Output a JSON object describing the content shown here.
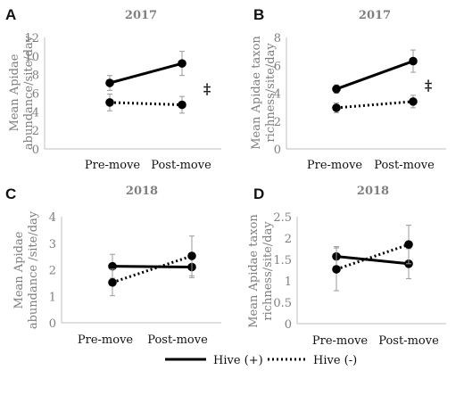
{
  "legend": {
    "hive_plus": "Hive (+)",
    "hive_minus": "Hive (-)"
  },
  "chart_data": [
    {
      "type": "line",
      "panel_letter": "A",
      "title": "2017",
      "ylabel_lines": [
        "Mean Apidae",
        "abundance/site/day"
      ],
      "categories": [
        "Pre-move",
        "Post-move"
      ],
      "ylim": [
        0,
        12
      ],
      "yticks": [
        "0",
        "2",
        "4",
        "6",
        "8",
        "10",
        "12"
      ],
      "significance": "‡",
      "series": [
        {
          "key": "hive_plus",
          "values": [
            7.1,
            9.2
          ],
          "error": [
            0.8,
            1.3
          ],
          "style": "solid"
        },
        {
          "key": "hive_minus",
          "values": [
            5.0,
            4.75
          ],
          "error": [
            0.9,
            0.9
          ],
          "style": "dotted"
        }
      ]
    },
    {
      "type": "line",
      "panel_letter": "B",
      "title": "2017",
      "ylabel_lines": [
        "Mean Apidae taxon",
        "richness/site/day"
      ],
      "categories": [
        "Pre-move",
        "Post-move"
      ],
      "ylim": [
        0,
        8
      ],
      "yticks": [
        "0",
        "2",
        "4",
        "6",
        "8"
      ],
      "significance": "‡",
      "series": [
        {
          "key": "hive_plus",
          "values": [
            4.3,
            6.3
          ],
          "error": [
            0.3,
            0.8
          ],
          "style": "solid"
        },
        {
          "key": "hive_minus",
          "values": [
            2.95,
            3.4
          ],
          "error": [
            0.35,
            0.45
          ],
          "style": "dotted"
        }
      ]
    },
    {
      "type": "line",
      "panel_letter": "C",
      "title": "2018",
      "ylabel_lines": [
        "Mean Apidae",
        "abundance /site/day"
      ],
      "categories": [
        "Pre-move",
        "Post-move"
      ],
      "ylim": [
        0,
        4
      ],
      "yticks": [
        "0",
        "1",
        "2",
        "3",
        "4"
      ],
      "significance": "",
      "series": [
        {
          "key": "hive_plus",
          "values": [
            2.13,
            2.1
          ],
          "error": [
            0.45,
            0.4
          ],
          "style": "solid"
        },
        {
          "key": "hive_minus",
          "values": [
            1.52,
            2.52
          ],
          "error": [
            0.5,
            0.75
          ],
          "style": "dotted"
        }
      ]
    },
    {
      "type": "line",
      "panel_letter": "D",
      "title": "2018",
      "ylabel_lines": [
        "Mean Apidae taxon",
        "richness/site/day"
      ],
      "categories": [
        "Pre-move",
        "Post-move"
      ],
      "ylim": [
        0,
        2.5
      ],
      "yticks": [
        "0",
        "0.5",
        "1",
        "1.5",
        "2",
        "2.5"
      ],
      "significance": "",
      "series": [
        {
          "key": "hive_plus",
          "values": [
            1.57,
            1.4
          ],
          "error": [
            0.23,
            0.35
          ],
          "style": "solid"
        },
        {
          "key": "hive_minus",
          "values": [
            1.27,
            1.85
          ],
          "error": [
            0.5,
            0.45
          ],
          "style": "dotted"
        }
      ]
    }
  ]
}
